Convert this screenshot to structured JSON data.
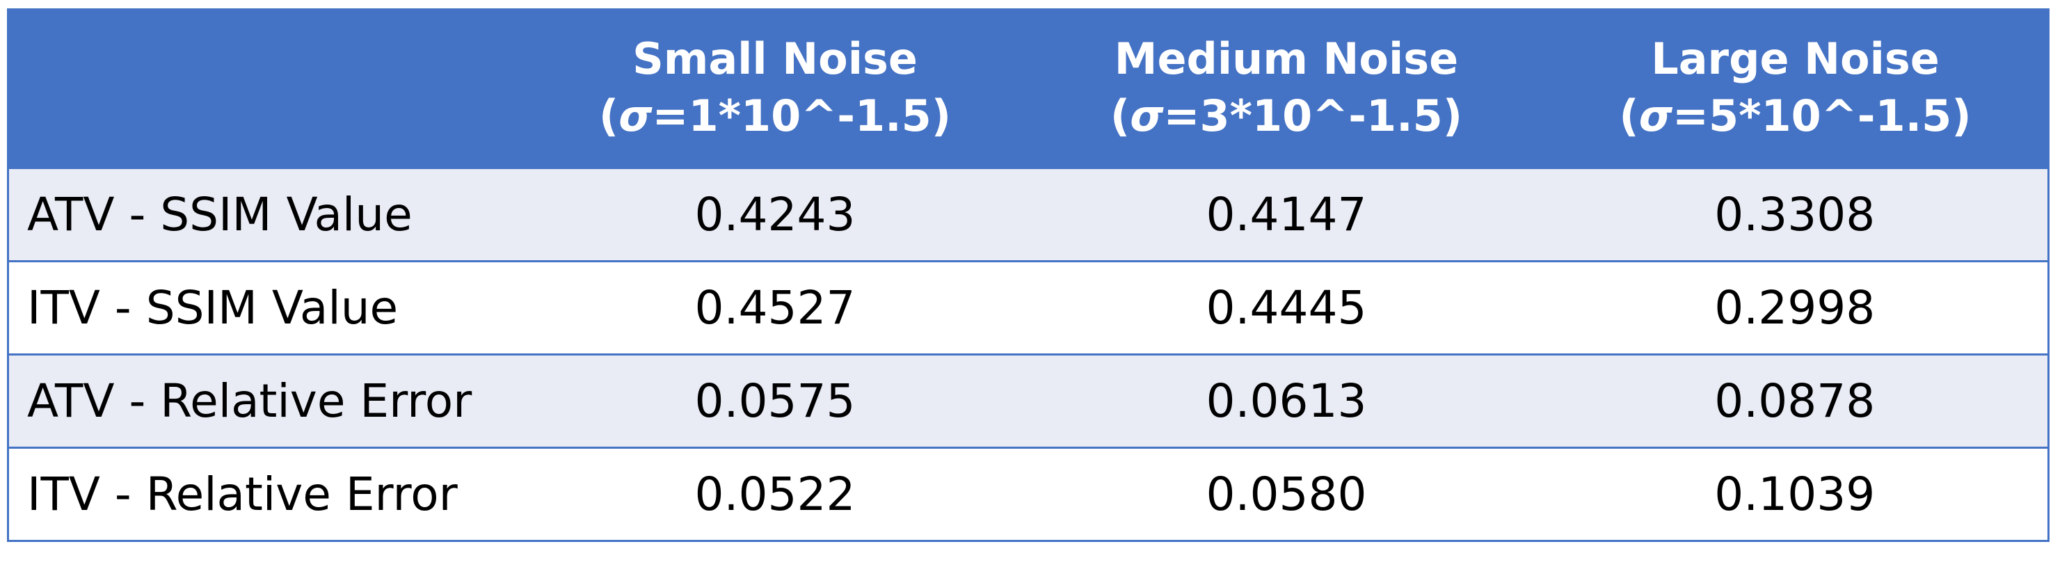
{
  "table": {
    "headers": [
      {
        "label": "",
        "params": ""
      },
      {
        "label": "Small Noise",
        "params_prefix": "(",
        "sigma": "σ",
        "params": "=1*10^-1.5)"
      },
      {
        "label": "Medium Noise",
        "params_prefix": "(",
        "sigma": "σ",
        "params": "=3*10^-1.5)"
      },
      {
        "label": "Large Noise",
        "params_prefix": "(",
        "sigma": "σ",
        "params": "=5*10^-1.5)"
      }
    ],
    "rows": [
      {
        "label": "ATV - SSIM Value",
        "values": [
          "0.4243",
          "0.4147",
          "0.3308"
        ]
      },
      {
        "label": "ITV - SSIM Value",
        "values": [
          "0.4527",
          "0.4445",
          "0.2998"
        ]
      },
      {
        "label": "ATV - Relative Error",
        "values": [
          "0.0575",
          "0.0613",
          "0.0878"
        ]
      },
      {
        "label": "ITV - Relative Error",
        "values": [
          "0.0522",
          "0.0580",
          "0.1039"
        ]
      }
    ]
  },
  "colors": {
    "header_bg": "#4472c4",
    "header_text": "#ffffff",
    "row_band": "#e9ebf5",
    "row_plain": "#ffffff",
    "border": "#4472c4"
  }
}
